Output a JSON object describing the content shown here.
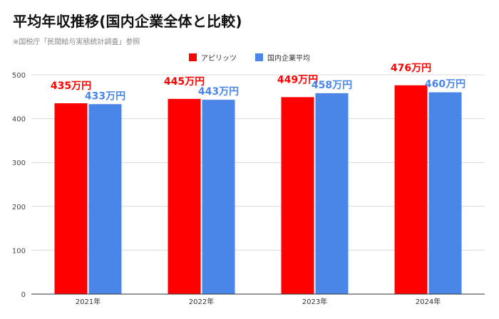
{
  "title": "平均年収推移(国内企業全体と比較)",
  "subtitle": "※国税庁「民間給与実態統計調査」参照",
  "colors": {
    "series_a": "#ff0000",
    "series_b": "#4a86e8",
    "grid": "#d9d9d9",
    "axis": "#333333"
  },
  "chart_data": {
    "type": "bar",
    "title": "平均年収推移(国内企業全体と比較)",
    "xlabel": "",
    "ylabel": "",
    "categories": [
      "2021年",
      "2022年",
      "2023年",
      "2024年"
    ],
    "ylim": [
      0,
      500
    ],
    "yticks": [
      0,
      100,
      200,
      300,
      400,
      500
    ],
    "grid": true,
    "legend_position": "top-center",
    "series": [
      {
        "name": "アピリッツ",
        "values": [
          435,
          445,
          449,
          476
        ],
        "labels": [
          "435万円",
          "445万円",
          "449万円",
          "476万円"
        ]
      },
      {
        "name": "国内企業平均",
        "values": [
          433,
          443,
          458,
          460
        ],
        "labels": [
          "433万円",
          "443万円",
          "458万円",
          "460万円"
        ]
      }
    ]
  }
}
